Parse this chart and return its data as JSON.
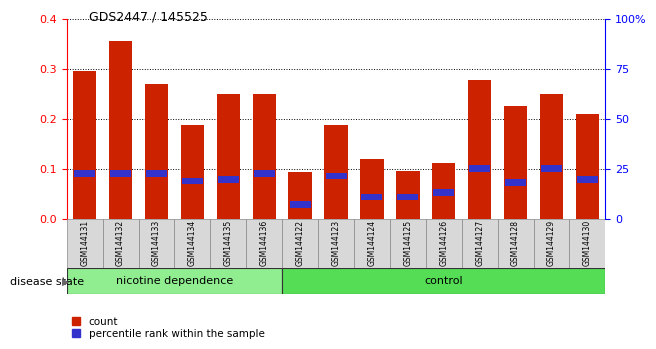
{
  "title": "GDS2447 / 145525",
  "categories": [
    "GSM144131",
    "GSM144132",
    "GSM144133",
    "GSM144134",
    "GSM144135",
    "GSM144136",
    "GSM144122",
    "GSM144123",
    "GSM144124",
    "GSM144125",
    "GSM144126",
    "GSM144127",
    "GSM144128",
    "GSM144129",
    "GSM144130"
  ],
  "count_values": [
    0.295,
    0.355,
    0.27,
    0.188,
    0.25,
    0.25,
    0.093,
    0.188,
    0.12,
    0.095,
    0.112,
    0.278,
    0.225,
    0.25,
    0.21
  ],
  "percentile_values": [
    0.09,
    0.09,
    0.09,
    0.075,
    0.078,
    0.09,
    0.028,
    0.085,
    0.043,
    0.043,
    0.052,
    0.1,
    0.072,
    0.1,
    0.078
  ],
  "bar_color": "#cc2200",
  "dot_color": "#3333cc",
  "ylim": [
    0,
    0.4
  ],
  "yticks": [
    0,
    0.1,
    0.2,
    0.3,
    0.4
  ],
  "y2ticks": [
    0,
    25,
    50,
    75,
    100
  ],
  "y2ticklabels": [
    "0",
    "25",
    "50",
    "75",
    "100%"
  ],
  "group1_label": "nicotine dependence",
  "group2_label": "control",
  "group1_count": 6,
  "group2_count": 9,
  "group1_color": "#90ee90",
  "group2_color": "#55dd55",
  "disease_state_label": "disease state",
  "legend_count_label": "count",
  "legend_percentile_label": "percentile rank within the sample",
  "bar_width": 0.65,
  "plot_bg": "#ffffff",
  "tick_label_color_left": "red",
  "tick_label_color_right": "blue"
}
